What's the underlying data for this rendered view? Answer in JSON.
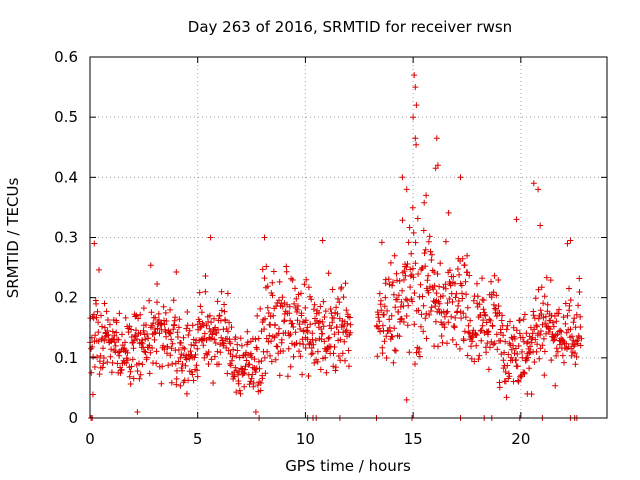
{
  "chart_data": {
    "type": "scatter",
    "title": "Day 263 of 2016, SRMTID for receiver rwsn",
    "xlabel": "GPS time / hours",
    "ylabel": "SRMTID / TECUs",
    "xlim": [
      0,
      24
    ],
    "ylim": [
      0,
      0.6
    ],
    "xticks": [
      0,
      5,
      10,
      15,
      20
    ],
    "yticks": [
      0,
      0.1,
      0.2,
      0.3,
      0.4,
      0.5,
      0.6
    ],
    "xtick_labels": [
      "0",
      "5",
      "10",
      "15",
      "20"
    ],
    "ytick_labels": [
      "0",
      "0.1",
      "0.2",
      "0.3",
      "0.4",
      "0.5",
      "0.6"
    ],
    "grid": true,
    "marker": "+",
    "color": "#dd0000",
    "data_gap_hours": [
      12.1,
      13.3
    ],
    "segments": [
      {
        "start": 0.0,
        "end": 1.0,
        "mean": 0.13,
        "spread": 0.04
      },
      {
        "start": 1.0,
        "end": 2.5,
        "mean": 0.12,
        "spread": 0.04
      },
      {
        "start": 2.5,
        "end": 4.0,
        "mean": 0.14,
        "spread": 0.045
      },
      {
        "start": 4.0,
        "end": 5.0,
        "mean": 0.11,
        "spread": 0.04
      },
      {
        "start": 5.0,
        "end": 6.5,
        "mean": 0.14,
        "spread": 0.045
      },
      {
        "start": 6.5,
        "end": 8.0,
        "mean": 0.09,
        "spread": 0.04
      },
      {
        "start": 8.0,
        "end": 10.0,
        "mean": 0.15,
        "spread": 0.05
      },
      {
        "start": 10.0,
        "end": 12.1,
        "mean": 0.14,
        "spread": 0.045
      },
      {
        "start": 13.3,
        "end": 14.5,
        "mean": 0.17,
        "spread": 0.05
      },
      {
        "start": 14.5,
        "end": 16.0,
        "mean": 0.22,
        "spread": 0.07
      },
      {
        "start": 16.0,
        "end": 17.5,
        "mean": 0.19,
        "spread": 0.06
      },
      {
        "start": 17.5,
        "end": 19.0,
        "mean": 0.16,
        "spread": 0.05
      },
      {
        "start": 19.0,
        "end": 20.5,
        "mean": 0.11,
        "spread": 0.04
      },
      {
        "start": 20.5,
        "end": 21.5,
        "mean": 0.16,
        "spread": 0.055
      },
      {
        "start": 21.5,
        "end": 22.8,
        "mean": 0.14,
        "spread": 0.045
      }
    ],
    "notable_points": [
      {
        "x": 15.05,
        "y": 0.57
      },
      {
        "x": 15.1,
        "y": 0.55
      },
      {
        "x": 15.15,
        "y": 0.52
      },
      {
        "x": 15.0,
        "y": 0.5
      },
      {
        "x": 15.1,
        "y": 0.465
      },
      {
        "x": 16.1,
        "y": 0.465
      },
      {
        "x": 16.05,
        "y": 0.415
      },
      {
        "x": 16.15,
        "y": 0.42
      },
      {
        "x": 14.5,
        "y": 0.4
      },
      {
        "x": 17.2,
        "y": 0.4
      },
      {
        "x": 20.6,
        "y": 0.39
      },
      {
        "x": 20.8,
        "y": 0.38
      },
      {
        "x": 14.7,
        "y": 0.38
      },
      {
        "x": 15.6,
        "y": 0.37
      },
      {
        "x": 19.8,
        "y": 0.33
      },
      {
        "x": 20.9,
        "y": 0.32
      },
      {
        "x": 0.2,
        "y": 0.29
      },
      {
        "x": 5.6,
        "y": 0.3
      },
      {
        "x": 8.1,
        "y": 0.3
      },
      {
        "x": 10.8,
        "y": 0.295
      },
      {
        "x": 22.3,
        "y": 0.295
      },
      {
        "x": 7.7,
        "y": 0.01
      },
      {
        "x": 14.7,
        "y": 0.03
      },
      {
        "x": 2.2,
        "y": 0.01
      },
      {
        "x": 4.5,
        "y": 0.04
      },
      {
        "x": 20.3,
        "y": 0.04
      }
    ],
    "zero_points": [
      0.05,
      0.1,
      7.85,
      10.1,
      10.35,
      10.5,
      11.6,
      13.3,
      14.95,
      17.2,
      18.3,
      18.65,
      19.95,
      21.0,
      22.3,
      22.5,
      22.6
    ]
  }
}
